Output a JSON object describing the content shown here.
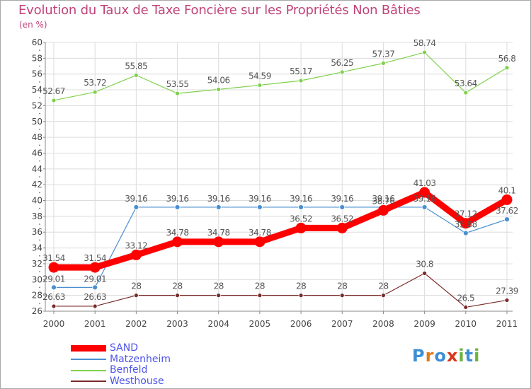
{
  "title": "Evolution du Taux de Taxe Foncière sur les Propriétés Non Bâties",
  "subtitle": "(en %)",
  "logo": {
    "letters": [
      "P",
      "r",
      "o",
      "x",
      "i",
      "t",
      "i"
    ],
    "colors": [
      "#3c8fd6",
      "#e07a1a",
      "#3c8fd6",
      "#d9361c",
      "#6db33f",
      "#3c8fd6",
      "#6db33f"
    ]
  },
  "chart_data": {
    "type": "line",
    "x": [
      "2000",
      "2001",
      "2002",
      "2003",
      "2004",
      "2005",
      "2006",
      "2007",
      "2008",
      "2009",
      "2010",
      "2011"
    ],
    "ylim": [
      26,
      60
    ],
    "yticks": [
      26,
      28,
      30,
      32,
      34,
      36,
      38,
      40,
      42,
      44,
      46,
      48,
      50,
      52,
      54,
      56,
      58,
      60
    ],
    "grid": true,
    "legend": "bottom-left",
    "series": [
      {
        "name": "SAND",
        "color": "#ff0000",
        "values": [
          31.54,
          31.54,
          33.12,
          34.78,
          34.78,
          34.78,
          36.52,
          36.52,
          38.76,
          41.03,
          37.12,
          40.1
        ],
        "labels": [
          "31.54",
          "31.54",
          "33.12",
          "34.78",
          "34.78",
          "34.78",
          "36.52",
          "36.52",
          "38.76",
          "41.03",
          "37.12",
          "40.1"
        ]
      },
      {
        "name": "Matzenheim",
        "color": "#4a8fd0",
        "values": [
          29.01,
          29.01,
          39.16,
          39.16,
          39.16,
          39.16,
          39.16,
          39.16,
          39.16,
          39.16,
          35.88,
          37.62
        ],
        "labels": [
          "29.01",
          "29.01",
          "39.16",
          "39.16",
          "39.16",
          "39.16",
          "39.16",
          "39.16",
          "39.16",
          "39.16",
          "35.88",
          "37.62"
        ]
      },
      {
        "name": "Benfeld",
        "color": "#7ed04b",
        "values": [
          52.67,
          53.72,
          55.85,
          53.55,
          54.06,
          54.59,
          55.17,
          56.25,
          57.37,
          58.74,
          53.64,
          56.8
        ],
        "labels": [
          "52.67",
          "53.72",
          "55.85",
          "53.55",
          "54.06",
          "54.59",
          "55.17",
          "56.25",
          "57.37",
          "58.74",
          "53.64",
          "56.8"
        ]
      },
      {
        "name": "Westhouse",
        "color": "#7a2a2a",
        "values": [
          26.63,
          26.63,
          28,
          28,
          28,
          28,
          28,
          28,
          28,
          30.8,
          26.5,
          27.39
        ],
        "labels": [
          "26.63",
          "26.63",
          "28",
          "28",
          "28",
          "28",
          "28",
          "28",
          "28",
          "30.8",
          "26.5",
          "27.39"
        ]
      }
    ]
  }
}
